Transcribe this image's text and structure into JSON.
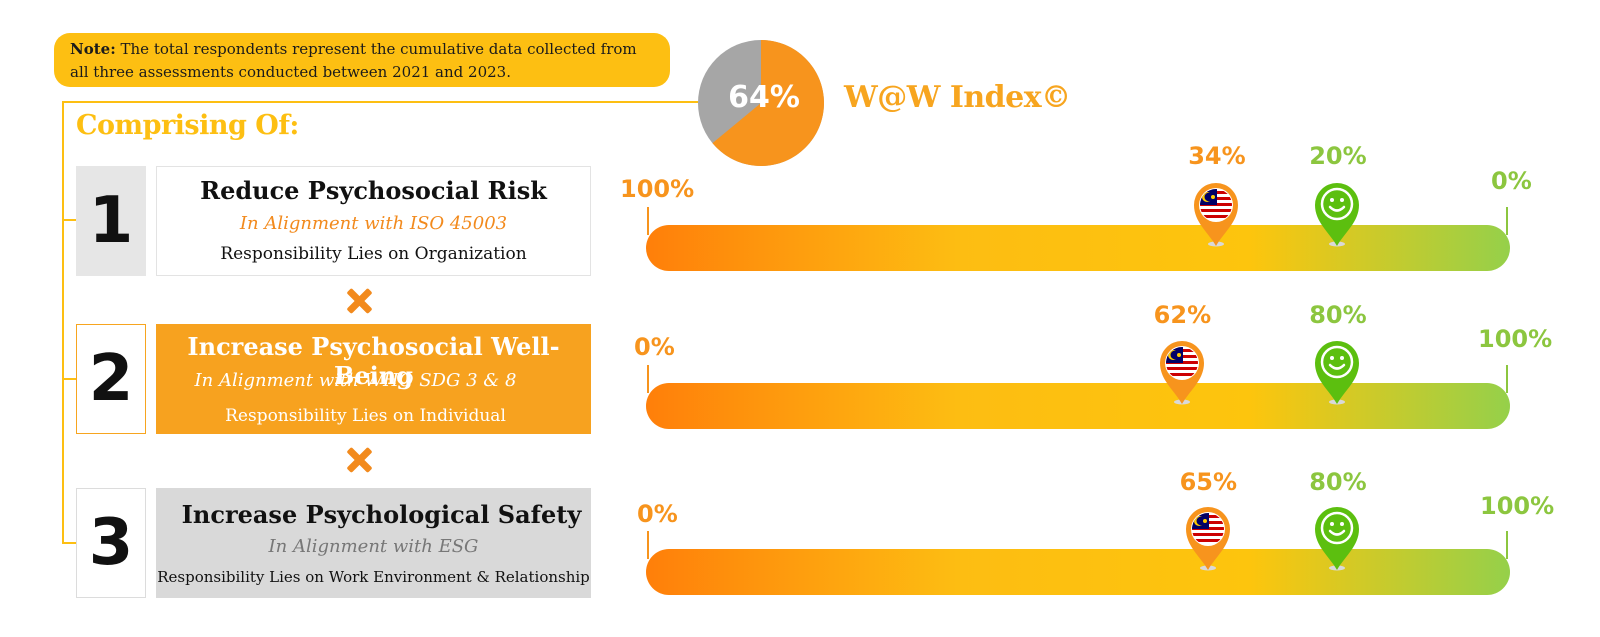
{
  "note": {
    "label": "Note:",
    "text": "The total respondents represent the cumulative data collected from all three assessments conducted between 2021 and 2023."
  },
  "index": {
    "value_label": "64%",
    "value": 64,
    "title": "W@W Index©",
    "colors": {
      "filled": "#f7941d",
      "remainder": "#a6a6a6"
    }
  },
  "comprising_title": "Comprising Of:",
  "operator_icon": "multiply-icon",
  "components": [
    {
      "number": "1",
      "title": "Reduce Psychosocial Risk",
      "alignment": "In Alignment with ISO 45003",
      "responsibility": "Responsibility Lies on Organization",
      "scale": {
        "left": "100%",
        "right": "0%"
      },
      "markers": [
        {
          "label": "34%",
          "value": 34,
          "icon": "malaysia-flag-pin-icon"
        },
        {
          "label": "20%",
          "value": 20,
          "icon": "smiley-pin-icon"
        }
      ]
    },
    {
      "number": "2",
      "title": "Increase Psychosocial Well-Being",
      "alignment": "In Alignment with WHO SDG 3 & 8",
      "responsibility": "Responsibility Lies on Individual",
      "scale": {
        "left": "0%",
        "right": "100%"
      },
      "markers": [
        {
          "label": "62%",
          "value": 62,
          "icon": "malaysia-flag-pin-icon"
        },
        {
          "label": "80%",
          "value": 80,
          "icon": "smiley-pin-icon"
        }
      ]
    },
    {
      "number": "3",
      "title": "Increase Psychological Safety",
      "alignment": "In Alignment with ESG",
      "responsibility": "Responsibility Lies on Work Environment & Relationship",
      "scale": {
        "left": "0%",
        "right": "100%"
      },
      "markers": [
        {
          "label": "65%",
          "value": 65,
          "icon": "malaysia-flag-pin-icon"
        },
        {
          "label": "80%",
          "value": 80,
          "icon": "smiley-pin-icon"
        }
      ]
    }
  ],
  "colors": {
    "accent_yellow": "#fdbf12",
    "accent_orange": "#f7941d",
    "accent_green": "#8cc63f"
  }
}
